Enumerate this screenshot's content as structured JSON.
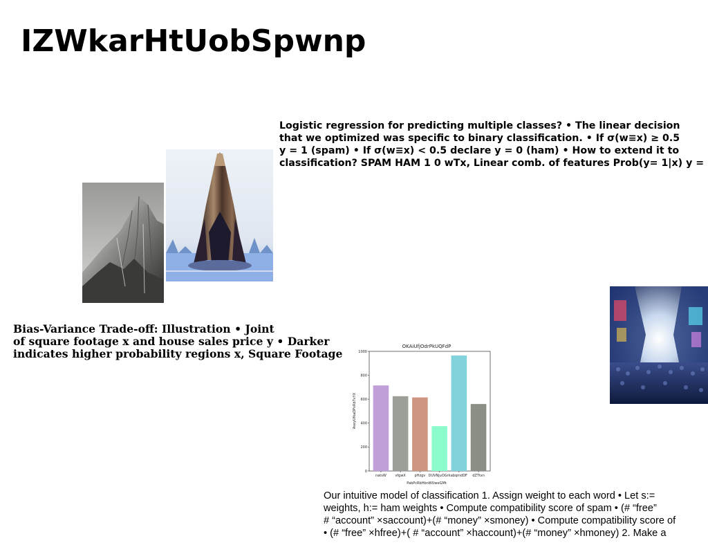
{
  "slide": {
    "title": "IZWkarHtUobSpwnp",
    "logistic_text": "Logistic regression for predicting multiple classes? • The linear decision\nthat we optimized was specific to binary classification. • If σ(w≡x) ≥ 0.5\ny = 1 (spam) • If σ(w≡x) < 0.5 declare y = 0 (ham) • How to extend it to\nclassification? SPAM HAM 1 0 wTx, Linear comb. of features Prob(y= 1|x) y =",
    "bias_text": "Bias-Variance Trade-off: Illustration • Joint\nof square footage x and house sales price y • Darker\nindicates higher probability regions x, Square Footage",
    "model_text": "Our intuitive model of classification 1. Assign weight to each word • Let s:=\nweights, h:= ham weights • Compute compatibility score of spam • (# “free”\n# “account” ×saccount)+(# “money” ×smoney) • Compute compatibility score of\n• (# “free” ×hfree)+( # “account” ×haccount)+(# “money” ×hmoney) 2. Make a"
  },
  "images": {
    "mountain": "mountain-photo",
    "rocket": "rocket-photo",
    "city": "city-crowd-photo"
  },
  "chart_data": {
    "type": "bar",
    "title": "OKAiUfjOdrPkUQFdP",
    "xlabel": "PabPcRbHbnWUweGMt",
    "ylabel": "AseyUfkaDPvRbTvYX",
    "categories": [
      "natsW",
      "vfgwX",
      "pHzgv",
      "DUVNjuOGrk",
      "abqmdDF",
      "dZTtxn"
    ],
    "values": [
      715,
      625,
      615,
      375,
      965,
      560
    ],
    "colors": [
      "#c09fd8",
      "#9c9f98",
      "#cf9583",
      "#8cfccc",
      "#82d2dc",
      "#8c8f86"
    ],
    "ylim": [
      0,
      1000
    ],
    "yticks": [
      0,
      200,
      400,
      600,
      800,
      1000
    ],
    "grid": false
  }
}
